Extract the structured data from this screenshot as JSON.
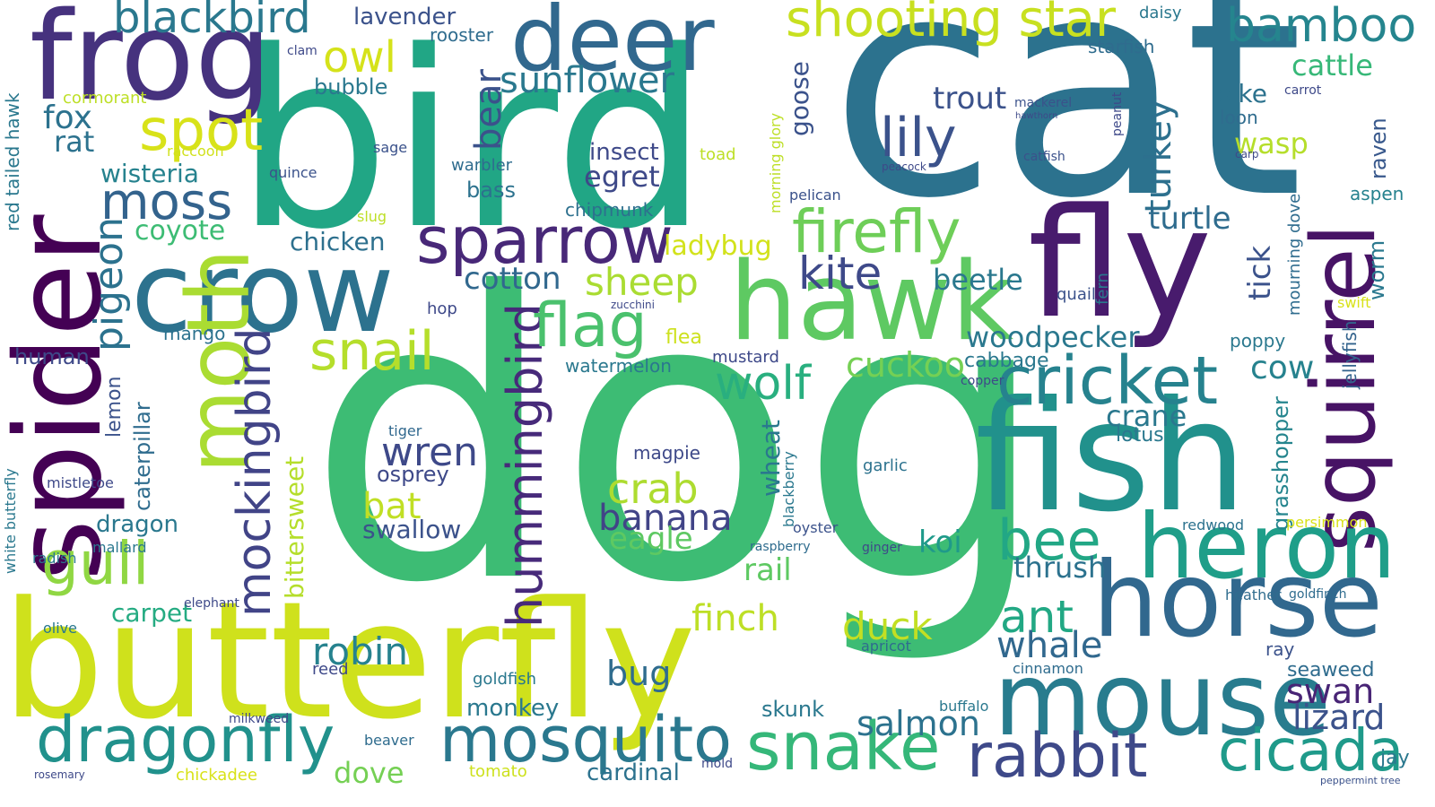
{
  "palette": [
    "#440154",
    "#472c7a",
    "#3b518b",
    "#2c718e",
    "#21908d",
    "#27ad81",
    "#5cc863",
    "#aadc32",
    "#d2de27"
  ],
  "words": [
    {
      "text": "dog",
      "color": "#3dbc74"
    },
    {
      "text": "cat",
      "color": "#2c728e"
    },
    {
      "text": "bird",
      "color": "#21a685"
    },
    {
      "text": "butterfly",
      "color": "#cfe11c"
    },
    {
      "text": "fly",
      "color": "#481b6d"
    },
    {
      "text": "spider",
      "color": "#440154"
    },
    {
      "text": "fish",
      "color": "#21918c"
    },
    {
      "text": "mouse",
      "color": "#287c8e"
    },
    {
      "text": "crow",
      "color": "#2c728e"
    },
    {
      "text": "frog",
      "color": "#46327e"
    },
    {
      "text": "hawk",
      "color": "#5ec962"
    },
    {
      "text": "deer",
      "color": "#31688e"
    },
    {
      "text": "horse",
      "color": "#31688e"
    },
    {
      "text": "moth",
      "color": "#aadc32"
    },
    {
      "text": "squirrel",
      "color": "#471365"
    },
    {
      "text": "heron",
      "color": "#1f9e89"
    },
    {
      "text": "sparrow",
      "color": "#482878"
    },
    {
      "text": "mosquito",
      "color": "#2a788e"
    },
    {
      "text": "dragonfly",
      "color": "#21918c"
    },
    {
      "text": "snake",
      "color": "#35b779"
    },
    {
      "text": "rabbit",
      "color": "#3e4989"
    },
    {
      "text": "cricket",
      "color": "#26828e"
    },
    {
      "text": "hummingbird",
      "color": "#472a7a"
    },
    {
      "text": "shooting star",
      "color": "#c8e020"
    },
    {
      "text": "cicada",
      "color": "#1f9a8a"
    },
    {
      "text": "firefly",
      "color": "#6ece58"
    },
    {
      "text": "bee",
      "color": "#22a785"
    },
    {
      "text": "mockingbird",
      "color": "#414487"
    },
    {
      "text": "gull",
      "color": "#90d743"
    },
    {
      "text": "blackbird",
      "color": "#2a788e"
    },
    {
      "text": "bamboo",
      "color": "#25858e"
    },
    {
      "text": "flag",
      "color": "#4ac16d"
    },
    {
      "text": "snail",
      "color": "#b5de2b"
    },
    {
      "text": "spot",
      "color": "#d8e219"
    },
    {
      "text": "lily",
      "color": "#3b528b"
    },
    {
      "text": "moss",
      "color": "#33638d"
    },
    {
      "text": "pigeon",
      "color": "#2c728e"
    },
    {
      "text": "wolf",
      "color": "#29af7f"
    },
    {
      "text": "ant",
      "color": "#22a884"
    },
    {
      "text": "kite",
      "color": "#3e4989"
    },
    {
      "text": "crab",
      "color": "#addc30"
    },
    {
      "text": "duck",
      "color": "#c2df23"
    },
    {
      "text": "owl",
      "color": "#d5e21a"
    },
    {
      "text": "bear",
      "color": "#3b528b"
    },
    {
      "text": "whale",
      "color": "#31688e"
    },
    {
      "text": "turkey",
      "color": "#2d708e"
    },
    {
      "text": "sunflower",
      "color": "#2a788e"
    },
    {
      "text": "cuckoo",
      "color": "#75d054"
    },
    {
      "text": "wren",
      "color": "#3e4989"
    },
    {
      "text": "banana",
      "color": "#414487"
    },
    {
      "text": "robin",
      "color": "#26828e"
    },
    {
      "text": "eagle",
      "color": "#5ec962"
    },
    {
      "text": "swan",
      "color": "#482475"
    },
    {
      "text": "lizard",
      "color": "#3b528b"
    },
    {
      "text": "salmon",
      "color": "#2c728e"
    },
    {
      "text": "finch",
      "color": "#bddf26"
    },
    {
      "text": "bat",
      "color": "#c0df25"
    },
    {
      "text": "rat",
      "color": "#2c728e"
    },
    {
      "text": "fox",
      "color": "#2c728e"
    },
    {
      "text": "sheep",
      "color": "#aadc32"
    },
    {
      "text": "woodpecker",
      "color": "#2a788e"
    },
    {
      "text": "cotton",
      "color": "#31688e"
    },
    {
      "text": "trout",
      "color": "#3b528b"
    },
    {
      "text": "turtle",
      "color": "#2f6c8e"
    },
    {
      "text": "cow",
      "color": "#26828e"
    },
    {
      "text": "crane",
      "color": "#2a788e"
    },
    {
      "text": "cattle",
      "color": "#37b878"
    },
    {
      "text": "bug",
      "color": "#2f6c8e"
    },
    {
      "text": "tick",
      "color": "#3b528b"
    },
    {
      "text": "coyote",
      "color": "#3dbc74"
    },
    {
      "text": "ladybug",
      "color": "#d2e21b"
    },
    {
      "text": "dragon",
      "color": "#2a788e"
    },
    {
      "text": "wasp",
      "color": "#b5de2b"
    },
    {
      "text": "koi",
      "color": "#1f9a8a"
    },
    {
      "text": "beetle",
      "color": "#2a788e"
    },
    {
      "text": "carpet",
      "color": "#25ab82"
    },
    {
      "text": "thrush",
      "color": "#2c728e"
    },
    {
      "text": "goose",
      "color": "#3b528b"
    },
    {
      "text": "egret",
      "color": "#3e4989"
    },
    {
      "text": "chicken",
      "color": "#2d708e"
    },
    {
      "text": "wisteria",
      "color": "#26828e"
    },
    {
      "text": "rail",
      "color": "#5ec962"
    },
    {
      "text": "raven",
      "color": "#38588c"
    },
    {
      "text": "monkey",
      "color": "#2a788e"
    },
    {
      "text": "dove",
      "color": "#75d054"
    },
    {
      "text": "grasshopper",
      "color": "#25858e"
    },
    {
      "text": "worm",
      "color": "#2a788e"
    },
    {
      "text": "caterpillar",
      "color": "#2f6c8e"
    },
    {
      "text": "jellyfish",
      "color": "#33638d"
    },
    {
      "text": "wheat",
      "color": "#2a788e"
    },
    {
      "text": "bittersweet",
      "color": "#b5de2b"
    },
    {
      "text": "pike",
      "color": "#2c728e"
    },
    {
      "text": "swallow",
      "color": "#3b528b"
    },
    {
      "text": "skunk",
      "color": "#2a788e"
    },
    {
      "text": "insect",
      "color": "#3e4989"
    },
    {
      "text": "cardinal",
      "color": "#2c728e"
    },
    {
      "text": "osprey",
      "color": "#3e4989"
    },
    {
      "text": "human",
      "color": "#3e4989"
    },
    {
      "text": "lemon",
      "color": "#3b528b"
    },
    {
      "text": "bass",
      "color": "#2c728e"
    },
    {
      "text": "seaweed",
      "color": "#2f6c8e"
    },
    {
      "text": "aspen",
      "color": "#26828e"
    },
    {
      "text": "cabbage",
      "color": "#2a788e"
    },
    {
      "text": "poppy",
      "color": "#2a788e"
    },
    {
      "text": "lotus",
      "color": "#2a788e"
    },
    {
      "text": "chipmunk",
      "color": "#2d708e"
    },
    {
      "text": "tiger",
      "color": "#31688e"
    },
    {
      "text": "mango",
      "color": "#2c728e"
    },
    {
      "text": "quail",
      "color": "#3b528b"
    },
    {
      "text": "jay",
      "color": "#2a788e"
    },
    {
      "text": "mustard",
      "color": "#3e4989"
    },
    {
      "text": "red tailed hawk",
      "color": "#2a788e"
    },
    {
      "text": "bubble",
      "color": "#2a788e"
    },
    {
      "text": "goldfish",
      "color": "#2a788e"
    },
    {
      "text": "flea",
      "color": "#cde11d"
    },
    {
      "text": "garlic",
      "color": "#2c728e"
    },
    {
      "text": "magpie",
      "color": "#3e4989"
    },
    {
      "text": "mallard",
      "color": "#2a788e"
    },
    {
      "text": "white butterfly",
      "color": "#2a788e"
    },
    {
      "text": "fern",
      "color": "#2a788e"
    },
    {
      "text": "redwood",
      "color": "#2c728e"
    },
    {
      "text": "heather",
      "color": "#2f6c8e"
    },
    {
      "text": "goldfinch",
      "color": "#2f6c8e"
    },
    {
      "text": "buffalo",
      "color": "#2a788e"
    },
    {
      "text": "radish",
      "color": "#2a788e"
    },
    {
      "text": "ray",
      "color": "#3b528b"
    },
    {
      "text": "toad",
      "color": "#bddf26"
    },
    {
      "text": "apricot",
      "color": "#2f6c8e"
    },
    {
      "text": "rooster",
      "color": "#2f6c8e"
    },
    {
      "text": "lavender",
      "color": "#3b528b"
    },
    {
      "text": "daisy",
      "color": "#2a788e"
    },
    {
      "text": "starfish",
      "color": "#2f6c8e"
    },
    {
      "text": "loon",
      "color": "#2f6c8e"
    },
    {
      "text": "warbler",
      "color": "#2f6c8e"
    },
    {
      "text": "raccoon",
      "color": "#d0e11c"
    },
    {
      "text": "cormorant",
      "color": "#bddf26"
    },
    {
      "text": "persimmon",
      "color": "#d8e219"
    },
    {
      "text": "mistletoe",
      "color": "#3e4989"
    },
    {
      "text": "tomato",
      "color": "#cde11d"
    },
    {
      "text": "chickadee",
      "color": "#d8e219"
    },
    {
      "text": "reed",
      "color": "#3e4989"
    },
    {
      "text": "olive",
      "color": "#2a788e"
    },
    {
      "text": "elephant",
      "color": "#3e4989"
    },
    {
      "text": "zucchini",
      "color": "#3e4989"
    },
    {
      "text": "watermelon",
      "color": "#2a788e"
    },
    {
      "text": "morning glory",
      "color": "#bddf26"
    },
    {
      "text": "mourning dove",
      "color": "#2f6c8e"
    },
    {
      "text": "blackberry",
      "color": "#2a788e"
    },
    {
      "text": "carrot",
      "color": "#3e4989"
    },
    {
      "text": "peanut",
      "color": "#3e4989"
    },
    {
      "text": "slug",
      "color": "#bddf26"
    },
    {
      "text": "pelican",
      "color": "#3b528b"
    },
    {
      "text": "cinnamon",
      "color": "#2f6c8e"
    },
    {
      "text": "beaver",
      "color": "#2f6c8e"
    },
    {
      "text": "mackerel",
      "color": "#3b528b"
    },
    {
      "text": "quince",
      "color": "#3b528b"
    },
    {
      "text": "sage",
      "color": "#3b528b"
    },
    {
      "text": "copper",
      "color": "#3e4989"
    },
    {
      "text": "raspberry",
      "color": "#2f6c8e"
    },
    {
      "text": "milkweed",
      "color": "#3e4989"
    },
    {
      "text": "hop",
      "color": "#3e4989"
    },
    {
      "text": "mold",
      "color": "#3e4989"
    },
    {
      "text": "clam",
      "color": "#3e4989"
    },
    {
      "text": "swift",
      "color": "#d8e219"
    },
    {
      "text": "catfish",
      "color": "#3b528b"
    },
    {
      "text": "ginger",
      "color": "#3e4989"
    },
    {
      "text": "oyster",
      "color": "#3b528b"
    },
    {
      "text": "rosemary",
      "color": "#3e4989"
    },
    {
      "text": "peppermint tree",
      "color": "#3b528b"
    },
    {
      "text": "carp",
      "color": "#3e4989"
    },
    {
      "text": "hawthorn",
      "color": "#3e4989"
    },
    {
      "text": "peacock",
      "color": "#3e4989"
    }
  ]
}
